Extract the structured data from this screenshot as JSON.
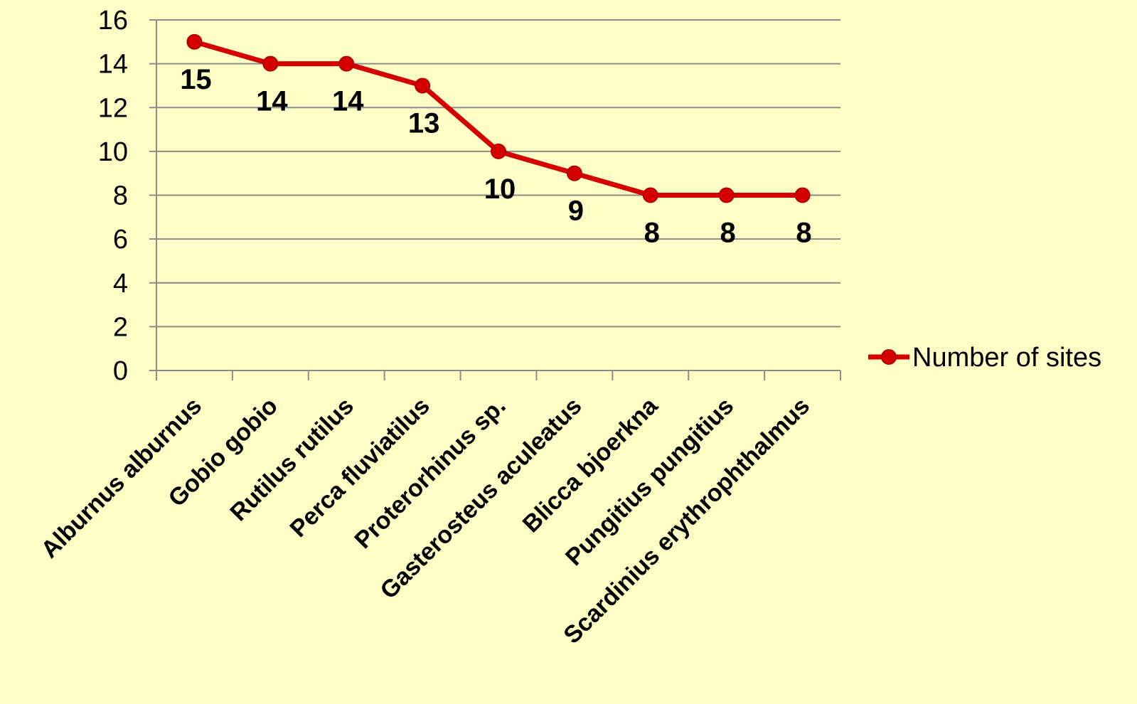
{
  "chart_data": {
    "type": "line",
    "categories": [
      "Alburnus alburnus",
      "Gobio gobio",
      "Rutilus rutilus",
      "Perca fluviatilus",
      "Proterorhinus sp.",
      "Gasterosteus aculeatus",
      "Blicca bjoerkna",
      "Pungitius pungitius",
      "Scardinius erythrophthalmus"
    ],
    "series": [
      {
        "name": "Number of sites",
        "values": [
          15,
          14,
          14,
          13,
          10,
          9,
          8,
          8,
          8
        ],
        "color": "#d40000"
      }
    ],
    "ylim": [
      0,
      16
    ],
    "yticks": [
      0,
      2,
      4,
      6,
      8,
      10,
      12,
      14,
      16
    ],
    "grid": true,
    "legend": "right"
  }
}
